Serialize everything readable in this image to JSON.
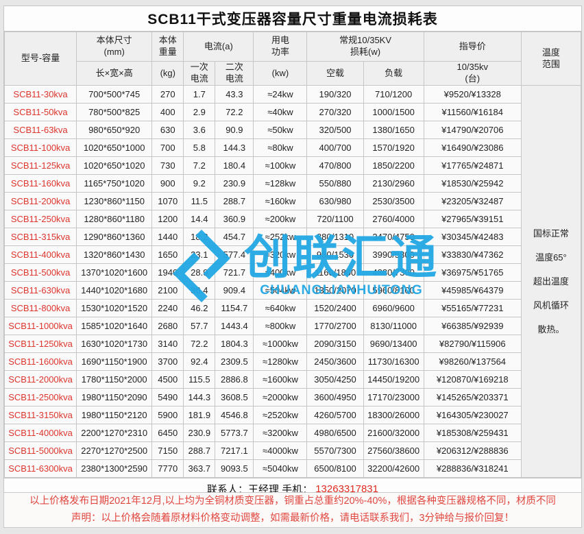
{
  "title": "SCB11干式变压器容量尺寸重量电流损耗表",
  "header": {
    "model": "型号-容量",
    "size_top": "本体尺寸\n(mm)",
    "size_sub": "长×宽×高",
    "weight_top": "本体\n重量",
    "weight_sub": "(kg)",
    "current_group": "电流(a)",
    "current_primary": "一次\n电流",
    "current_secondary": "二次\n电流",
    "power_top": "用电\n功率",
    "power_sub": "(kw)",
    "loss_group": "常规10/35KV\n损耗(w)",
    "loss_noload": "空载",
    "loss_load": "负载",
    "price_group": "指导价",
    "price_sub": "10/35kv\n(台)",
    "temp": "温度\n范围"
  },
  "rows": [
    {
      "model": "SCB11-30kva",
      "size": "700*500*745",
      "weight": "270",
      "i1": "1.7",
      "i2": "43.3",
      "power": "≈24kw",
      "noload": "190/320",
      "load": "710/1200",
      "price": "¥9520/¥13328"
    },
    {
      "model": "SCB11-50kva",
      "size": "780*500*825",
      "weight": "400",
      "i1": "2.9",
      "i2": "72.2",
      "power": "≈40kw",
      "noload": "270/320",
      "load": "1000/1500",
      "price": "¥11560/¥16184"
    },
    {
      "model": "SCB11-63kva",
      "size": "980*650*920",
      "weight": "630",
      "i1": "3.6",
      "i2": "90.9",
      "power": "≈50kw",
      "noload": "320/500",
      "load": "1380/1650",
      "price": "¥14790/¥20706"
    },
    {
      "model": "SCB11-100kva",
      "size": "1020*650*1000",
      "weight": "700",
      "i1": "5.8",
      "i2": "144.3",
      "power": "≈80kw",
      "noload": "400/700",
      "load": "1570/1920",
      "price": "¥16490/¥23086"
    },
    {
      "model": "SCB11-125kva",
      "size": "1020*650*1020",
      "weight": "730",
      "i1": "7.2",
      "i2": "180.4",
      "power": "≈100kw",
      "noload": "470/800",
      "load": "1850/2200",
      "price": "¥17765/¥24871"
    },
    {
      "model": "SCB11-160kva",
      "size": "1165*750*1020",
      "weight": "900",
      "i1": "9.2",
      "i2": "230.9",
      "power": "≈128kw",
      "noload": "550/880",
      "load": "2130/2960",
      "price": "¥18530/¥25942"
    },
    {
      "model": "SCB11-200kva",
      "size": "1230*860*1150",
      "weight": "1070",
      "i1": "11.5",
      "i2": "288.7",
      "power": "≈160kw",
      "noload": "630/980",
      "load": "2530/3500",
      "price": "¥23205/¥32487"
    },
    {
      "model": "SCB11-250kva",
      "size": "1280*860*1180",
      "weight": "1200",
      "i1": "14.4",
      "i2": "360.9",
      "power": "≈200kw",
      "noload": "720/1100",
      "load": "2760/4000",
      "price": "¥27965/¥39151"
    },
    {
      "model": "SCB11-315kva",
      "size": "1290*860*1360",
      "weight": "1440",
      "i1": "18.2",
      "i2": "454.7",
      "power": "≈252kw",
      "noload": "880/1310",
      "load": "3470/4750",
      "price": "¥30345/¥42483"
    },
    {
      "model": "SCB11-400kva",
      "size": "1320*860*1430",
      "weight": "1650",
      "i1": "23.1",
      "i2": "577.4",
      "power": "≈320kw",
      "noload": "980/1530",
      "load": "3990/5300",
      "price": "¥33830/¥47362"
    },
    {
      "model": "SCB11-500kva",
      "size": "1370*1020*1600",
      "weight": "1940",
      "i1": "28.9",
      "i2": "721.7",
      "power": "≈400kw",
      "noload": "1160/1800",
      "load": "4880/7300",
      "price": "¥36975/¥51765"
    },
    {
      "model": "SCB11-630kva",
      "size": "1440*1020*1680",
      "weight": "2100",
      "i1": "36.4",
      "i2": "909.4",
      "power": "≈504kw",
      "noload": "1350/2070",
      "load": "5960/8100",
      "price": "¥45985/¥64379"
    },
    {
      "model": "SCB11-800kva",
      "size": "1530*1020*1520",
      "weight": "2240",
      "i1": "46.2",
      "i2": "1154.7",
      "power": "≈640kw",
      "noload": "1520/2400",
      "load": "6960/9600",
      "price": "¥55165/¥77231"
    },
    {
      "model": "SCB11-1000kva",
      "size": "1585*1020*1640",
      "weight": "2680",
      "i1": "57.7",
      "i2": "1443.4",
      "power": "≈800kw",
      "noload": "1770/2700",
      "load": "8130/11000",
      "price": "¥66385/¥92939"
    },
    {
      "model": "SCB11-1250kva",
      "size": "1630*1020*1730",
      "weight": "3140",
      "i1": "72.2",
      "i2": "1804.3",
      "power": "≈1000kw",
      "noload": "2090/3150",
      "load": "9690/13400",
      "price": "¥82790/¥115906"
    },
    {
      "model": "SCB11-1600kva",
      "size": "1690*1150*1900",
      "weight": "3700",
      "i1": "92.4",
      "i2": "2309.5",
      "power": "≈1280kw",
      "noload": "2450/3600",
      "load": "11730/16300",
      "price": "¥98260/¥137564"
    },
    {
      "model": "SCB11-2000kva",
      "size": "1780*1150*2000",
      "weight": "4500",
      "i1": "115.5",
      "i2": "2886.8",
      "power": "≈1600kw",
      "noload": "3050/4250",
      "load": "14450/19200",
      "price": "¥120870/¥169218"
    },
    {
      "model": "SCB11-2500kva",
      "size": "1980*1150*2090",
      "weight": "5490",
      "i1": "144.3",
      "i2": "3608.5",
      "power": "≈2000kw",
      "noload": "3600/4950",
      "load": "17170/23000",
      "price": "¥145265/¥203371"
    },
    {
      "model": "SCB11-3150kva",
      "size": "1980*1150*2120",
      "weight": "5900",
      "i1": "181.9",
      "i2": "4546.8",
      "power": "≈2520kw",
      "noload": "4260/5700",
      "load": "18300/26000",
      "price": "¥164305/¥230027"
    },
    {
      "model": "SCB11-4000kva",
      "size": "2200*1270*2310",
      "weight": "6450",
      "i1": "230.9",
      "i2": "5773.7",
      "power": "≈3200kw",
      "noload": "4980/6500",
      "load": "21600/32000",
      "price": "¥185308/¥259431"
    },
    {
      "model": "SCB11-5000kva",
      "size": "2270*1270*2500",
      "weight": "7150",
      "i1": "288.7",
      "i2": "7217.1",
      "power": "≈4000kw",
      "noload": "5570/7300",
      "load": "27560/38600",
      "price": "¥206312/¥288836"
    },
    {
      "model": "SCB11-6300kva",
      "size": "2380*1300*2590",
      "weight": "7770",
      "i1": "363.7",
      "i2": "9093.5",
      "power": "≈5040kw",
      "noload": "6500/8100",
      "load": "32200/42600",
      "price": "¥288836/¥318241"
    }
  ],
  "temp_note": "国标正常\n温度65°\n超出温度\n风机循环\n散热。",
  "contact": {
    "label": "联系人：王经理  手机：",
    "phone": "13263317831"
  },
  "notice": {
    "line1": "以上价格发布日期2021年12月,以上均为全铜材质变压器，铜重占总重约20%-40%，根据各种变压器规格不同，材质不同",
    "line2": "声明：以上价格会随着原材料价格变动调整，如需最新价格，请电话联系我们，3分钟给与报价回复！"
  },
  "watermark": {
    "text": "创联汇通",
    "subtext": "CHUANGLIANHUITONG",
    "color": "#22a7e3"
  },
  "colors": {
    "model_red": "#dd342c",
    "notice_red": "#e0473f",
    "header_bg": "#efefef",
    "border": "#c6c6c6",
    "watermark_blue": "#22a7e3"
  }
}
